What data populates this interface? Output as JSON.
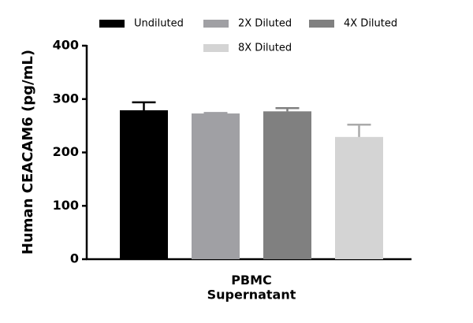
{
  "chart_data": {
    "type": "bar",
    "y_label": "Human CEACAM6 (pg/mL)",
    "categories": [
      "PBMC\nSupernatant"
    ],
    "series": [
      {
        "name": "Undiluted",
        "color": "#000000",
        "values": [
          279
        ],
        "errors": [
          15
        ]
      },
      {
        "name": "2X Diluted",
        "color": "#a0a0a4",
        "values": [
          273
        ],
        "errors": [
          1
        ]
      },
      {
        "name": "4X Diluted",
        "color": "#808080",
        "values": [
          277
        ],
        "errors": [
          6
        ]
      },
      {
        "name": "8X Diluted",
        "color": "#d4d4d4",
        "values": [
          229
        ],
        "errors": [
          23
        ]
      }
    ],
    "ylim": [
      0,
      400
    ],
    "yticks": [
      0,
      100,
      200,
      300,
      400
    ],
    "grid": false,
    "legend": "top"
  }
}
